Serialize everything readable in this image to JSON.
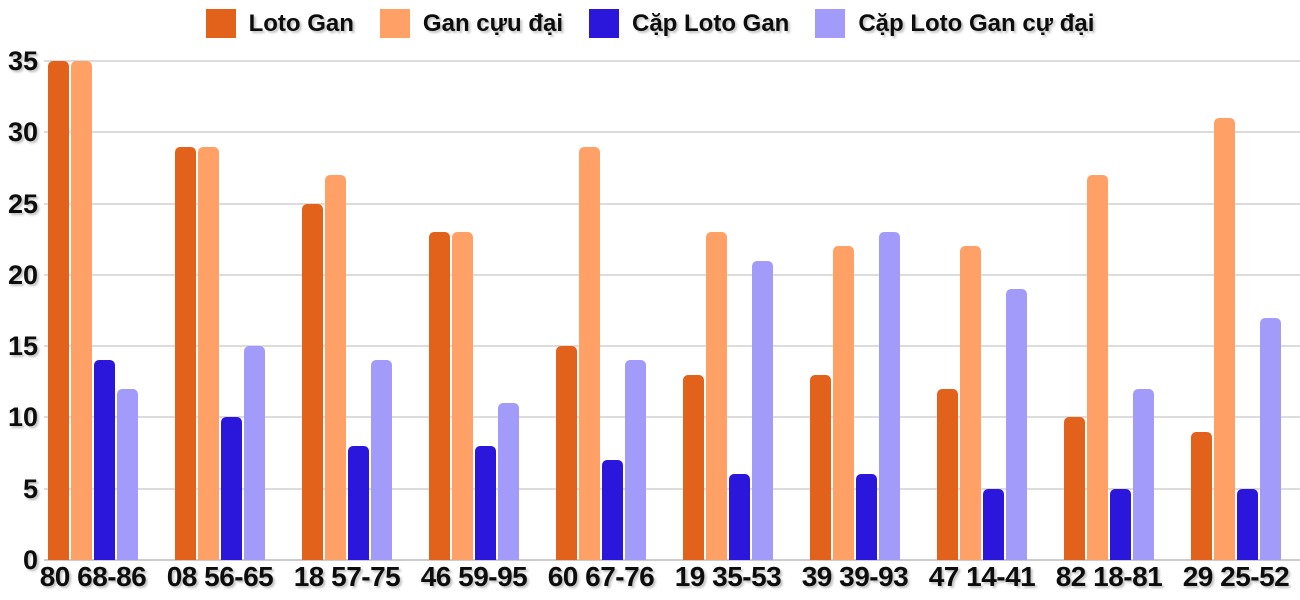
{
  "chart_data": {
    "type": "bar",
    "title": "",
    "xlabel": "",
    "ylabel": "",
    "categories": [
      "80 68-86",
      "08 56-65",
      "18 57-75",
      "46 59-95",
      "60 67-76",
      "19 35-53",
      "39 39-93",
      "47 14-41",
      "82 18-81",
      "29 25-52"
    ],
    "series": [
      {
        "name": "Loto Gan",
        "color": "#E2621B",
        "values": [
          35,
          29,
          25,
          23,
          15,
          13,
          13,
          12,
          10,
          9
        ]
      },
      {
        "name": "Gan cựu đại",
        "color": "#FFA167",
        "values": [
          35,
          29,
          27,
          23,
          29,
          23,
          22,
          22,
          27,
          31
        ]
      },
      {
        "name": "Cặp Loto Gan",
        "color": "#2B17DB",
        "values": [
          14,
          10,
          8,
          8,
          7,
          6,
          6,
          5,
          5,
          5
        ]
      },
      {
        "name": "Cặp Loto Gan cự đại",
        "color": "#A29BFA",
        "values": [
          12,
          15,
          14,
          11,
          14,
          21,
          23,
          19,
          12,
          17
        ]
      }
    ],
    "y_ticks": [
      0,
      5,
      10,
      15,
      20,
      25,
      30,
      35
    ],
    "ylim": [
      0,
      35
    ],
    "grid": true,
    "legend_position": "top"
  },
  "colors": {
    "grid": "#DCDCDC",
    "baseline": "#CCCCCC",
    "axis_text": "#0D0D0D",
    "background": "#FFFFFF"
  }
}
